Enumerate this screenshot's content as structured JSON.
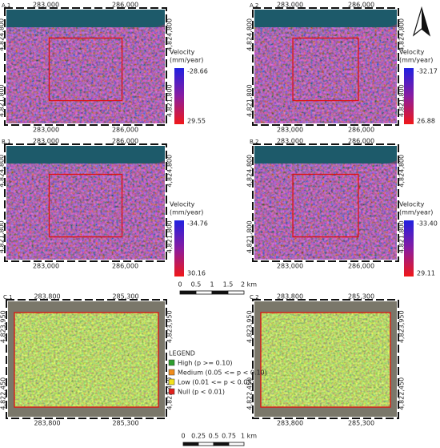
{
  "panels": [
    {
      "label": "A.1",
      "x_ticks": [
        "283,000",
        "286,000"
      ],
      "y_ticks": [
        "4,824,800",
        "4,821,800"
      ],
      "colorbar": {
        "title": [
          "Velocity",
          "(mm/year)"
        ],
        "top": "-28.66",
        "bottom": "29.55"
      }
    },
    {
      "label": "A.2",
      "x_ticks": [
        "283,000",
        "286,000"
      ],
      "y_ticks": [
        "4,824,800",
        "4,821,800"
      ],
      "colorbar": {
        "title": [
          "Velocity",
          "(mm/year)"
        ],
        "top": "-32.17",
        "bottom": "26.88"
      }
    },
    {
      "label": "B.1",
      "x_ticks": [
        "283,000",
        "286,000"
      ],
      "y_ticks": [
        "4,824,800",
        "4,821,800"
      ],
      "colorbar": {
        "title": [
          "Velocity",
          "(mm/year)"
        ],
        "top": "-34.76",
        "bottom": "30.16"
      }
    },
    {
      "label": "B.2",
      "x_ticks": [
        "283,000",
        "286,000"
      ],
      "y_ticks": [
        "4,824,800",
        "4,821,800"
      ],
      "colorbar": {
        "title": [
          "Velocity",
          "(mm/year)"
        ],
        "top": "-33.40",
        "bottom": "29.11"
      }
    },
    {
      "label": "C.1",
      "x_ticks": [
        "283,800",
        "285,300"
      ],
      "y_ticks": [
        "4,823,950",
        "4,822,450"
      ]
    },
    {
      "label": "C.2",
      "x_ticks": [
        "283,800",
        "285,300"
      ],
      "y_ticks": [
        "4,823,950",
        "4,822,450"
      ]
    }
  ],
  "scale_bars": [
    {
      "labels": [
        "0",
        "0.5",
        "1",
        "1.5",
        "2 km"
      ]
    },
    {
      "labels": [
        "0",
        "0.25",
        "0.5",
        "0.75",
        "1 km"
      ]
    }
  ],
  "legend": {
    "title": "LEGEND",
    "items": [
      {
        "label": "High (p >= 0.10)",
        "color": "#2e9e2e"
      },
      {
        "label": "Medium (0.05 <= p < 0.10)",
        "color": "#f08c1c"
      },
      {
        "label": "Low (0.01 <= p < 0.05)",
        "color": "#f2e21c"
      },
      {
        "label": "Null (p < 0.01)",
        "color": "#e0201c"
      }
    ]
  }
}
